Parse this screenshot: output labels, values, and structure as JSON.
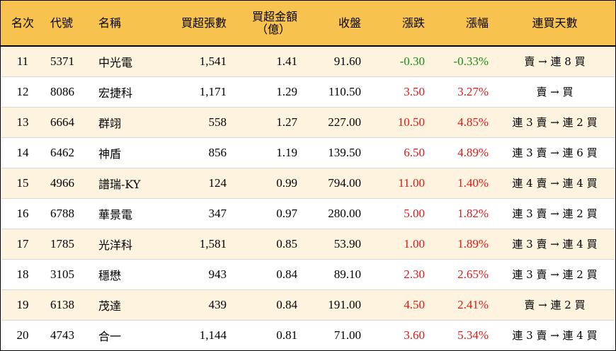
{
  "table": {
    "headers": {
      "rank": "名次",
      "code": "代號",
      "name": "名稱",
      "net_shares": "買超張數",
      "net_amount": "買超金額",
      "net_amount_unit": "（億）",
      "close": "收盤",
      "change": "漲跌",
      "change_pct": "漲幅",
      "streak": "連買天數"
    },
    "rows": [
      {
        "rank": "11",
        "code": "5371",
        "name": "中光電",
        "shares": "1,541",
        "amount": "1.41",
        "close": "91.60",
        "change": "-0.30",
        "pct": "-0.33%",
        "streak": "賣 → 連 8 買",
        "color": "#1a8a1a"
      },
      {
        "rank": "12",
        "code": "8086",
        "name": "宏捷科",
        "shares": "1,171",
        "amount": "1.29",
        "close": "110.50",
        "change": "3.50",
        "pct": "3.27%",
        "streak": "賣 → 買",
        "color": "#e01818"
      },
      {
        "rank": "13",
        "code": "6664",
        "name": "群翊",
        "shares": "558",
        "amount": "1.27",
        "close": "227.00",
        "change": "10.50",
        "pct": "4.85%",
        "streak": "連 3 賣 → 連 2 買",
        "color": "#e01818"
      },
      {
        "rank": "14",
        "code": "6462",
        "name": "神盾",
        "shares": "856",
        "amount": "1.19",
        "close": "139.50",
        "change": "6.50",
        "pct": "4.89%",
        "streak": "連 3 賣 → 連 6 買",
        "color": "#e01818"
      },
      {
        "rank": "15",
        "code": "4966",
        "name": "譜瑞-KY",
        "shares": "124",
        "amount": "0.99",
        "close": "794.00",
        "change": "11.00",
        "pct": "1.40%",
        "streak": "連 4 賣 → 連 4 買",
        "color": "#e01818"
      },
      {
        "rank": "16",
        "code": "6788",
        "name": "華景電",
        "shares": "347",
        "amount": "0.97",
        "close": "280.00",
        "change": "5.00",
        "pct": "1.82%",
        "streak": "連 3 賣 → 連 2 買",
        "color": "#e01818"
      },
      {
        "rank": "17",
        "code": "1785",
        "name": "光洋科",
        "shares": "1,581",
        "amount": "0.85",
        "close": "53.90",
        "change": "1.00",
        "pct": "1.89%",
        "streak": "連 3 賣 → 連 4 買",
        "color": "#e01818"
      },
      {
        "rank": "18",
        "code": "3105",
        "name": "穩懋",
        "shares": "943",
        "amount": "0.84",
        "close": "89.10",
        "change": "2.30",
        "pct": "2.65%",
        "streak": "連 3 賣 → 連 2 買",
        "color": "#e01818"
      },
      {
        "rank": "19",
        "code": "6138",
        "name": "茂達",
        "shares": "439",
        "amount": "0.84",
        "close": "191.00",
        "change": "4.50",
        "pct": "2.41%",
        "streak": "賣 → 連 2 買",
        "color": "#e01818"
      },
      {
        "rank": "20",
        "code": "4743",
        "name": "合一",
        "shares": "1,144",
        "amount": "0.81",
        "close": "71.00",
        "change": "3.60",
        "pct": "5.34%",
        "streak": "連 3 賣 → 連 4 買",
        "color": "#e01818"
      }
    ]
  }
}
